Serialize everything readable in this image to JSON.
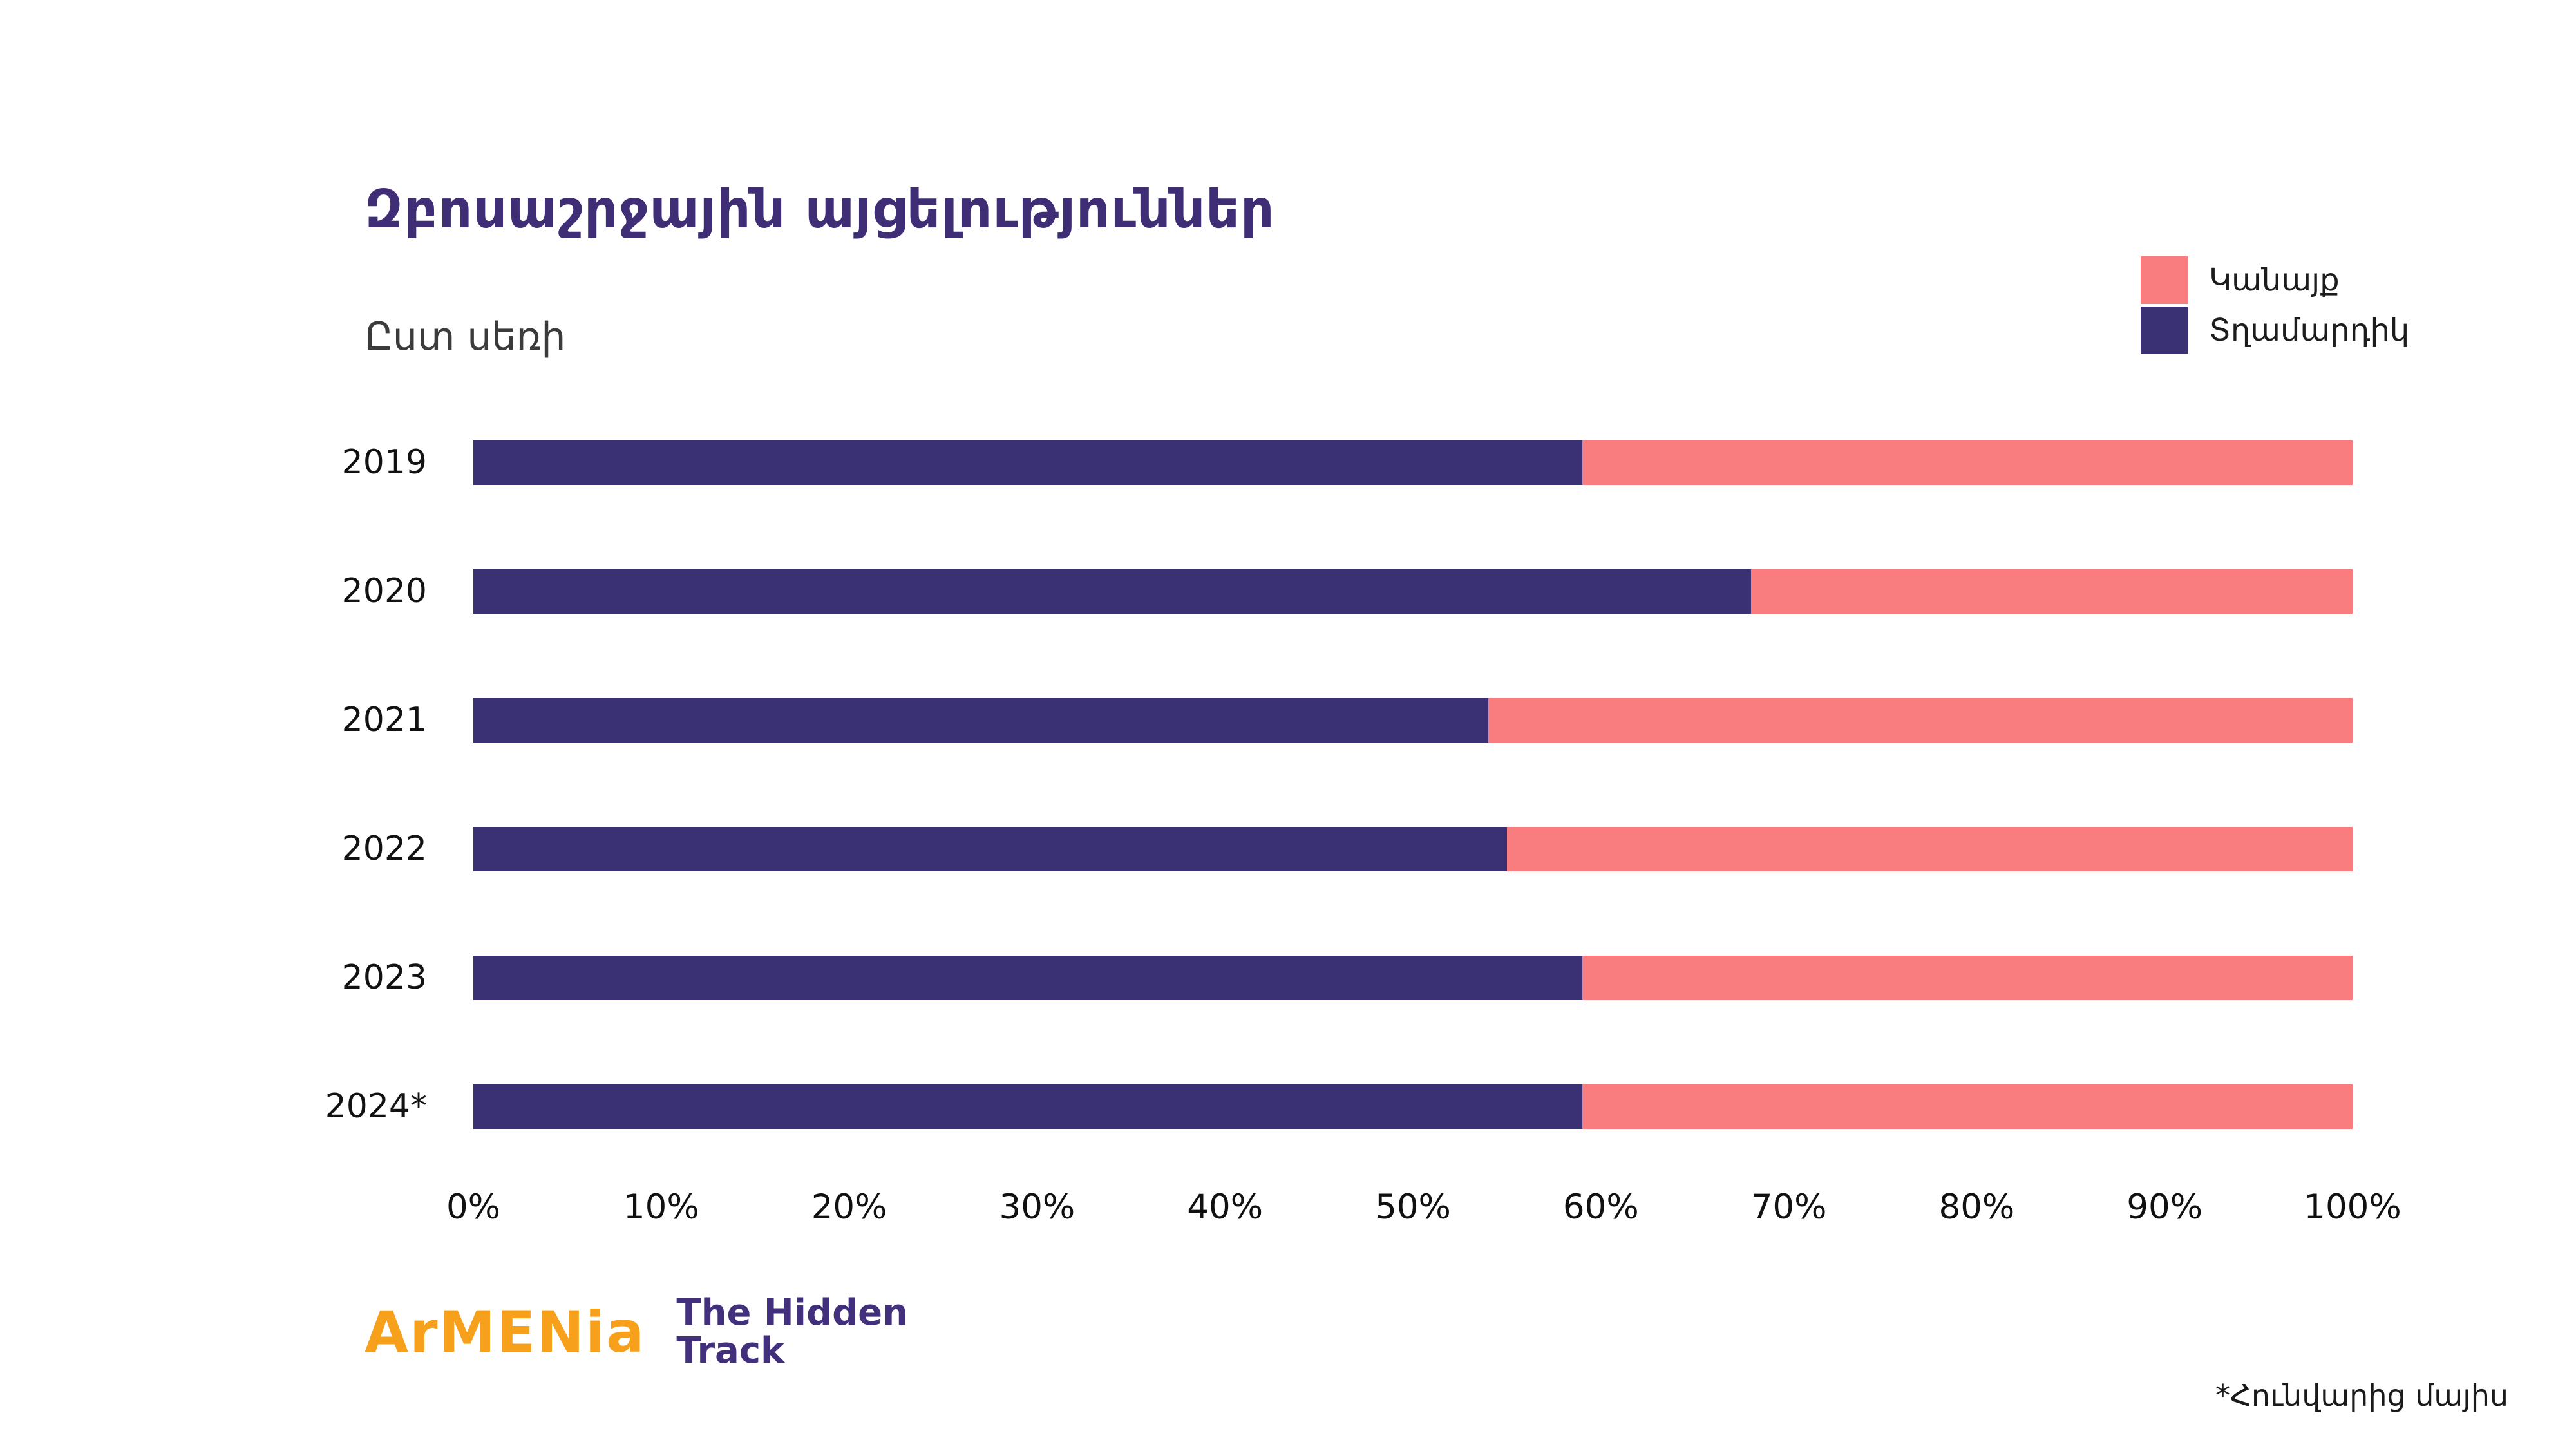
{
  "title": "Զբոսաշրջային այցելություններ",
  "subtitle": "Ըստ սեռի",
  "legend": [
    {
      "label": "Կանայք",
      "color": "#F97C7E"
    },
    {
      "label": "Տղամարդիկ",
      "color": "#3A3174"
    }
  ],
  "chart_data": {
    "type": "bar",
    "stacked": true,
    "orientation": "horizontal",
    "title": "Զբոսաշրջային այցելություններ",
    "subtitle": "Ըստ սեռի",
    "categories": [
      "2019",
      "2020",
      "2021",
      "2022",
      "2023",
      "2024*"
    ],
    "series": [
      {
        "name": "Տղամարդիկ",
        "color": "#3A3174",
        "values": [
          59,
          68,
          54,
          55,
          59,
          59
        ]
      },
      {
        "name": "Կանայք",
        "color": "#F97C7E",
        "values": [
          41,
          32,
          46,
          45,
          41,
          41
        ]
      }
    ],
    "x_ticks": [
      "0%",
      "10%",
      "20%",
      "30%",
      "40%",
      "50%",
      "60%",
      "70%",
      "80%",
      "90%",
      "100%"
    ],
    "xlim": [
      0,
      100
    ],
    "grid": false,
    "legend_position": "top-right"
  },
  "footer": {
    "logo_primary": "ArMENia",
    "logo_line1": "The Hidden",
    "logo_line2": "Track",
    "footnote": "*Հունվարից մայիս"
  }
}
